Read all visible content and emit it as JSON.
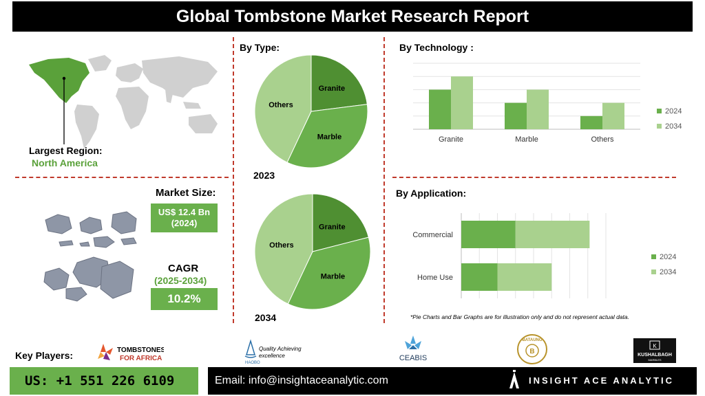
{
  "title": "Global Tombstone Market Research Report",
  "region": {
    "label": "Largest Region:",
    "value": "North America"
  },
  "market_size": {
    "label": "Market Size:",
    "value": "US$ 12.4 Bn",
    "year": "(2024)"
  },
  "cagr": {
    "label": "CAGR",
    "period": "(2025-2034)",
    "value": "10.2%"
  },
  "by_type": {
    "label": "By Type:",
    "year_top": "2023",
    "year_bottom": "2034"
  },
  "by_technology": {
    "label": "By Technology :"
  },
  "by_application": {
    "label": "By Application:"
  },
  "disclaimer": "*Pie Charts and Bar Graphs are for illustration only and do not represent actual data.",
  "key_players": {
    "label": "Key Players:",
    "logos": [
      {
        "name": "tombstones-for-africa-logo",
        "line1": "TOMBSTONES",
        "line2": "FOR AFRICA"
      },
      {
        "name": "haobo-logo",
        "line1": "Quality Achieving",
        "line2": "excellence",
        "brand": "HAOBO"
      },
      {
        "name": "ceabis-logo",
        "line1": "CEABIS"
      },
      {
        "name": "bataung-logo",
        "line1": "BATAUNG"
      },
      {
        "name": "kushalbagh-logo",
        "line1": "KUSHALBAGH",
        "line2": "MARBLES"
      }
    ]
  },
  "footer": {
    "phone": "US: +1 551 226 6109",
    "email": "Email: info@insightaceanalytic.com",
    "brand": "INSIGHT ACE ANALYTIC"
  },
  "colors": {
    "dark_green": "#4f8f32",
    "mid_green": "#6ab04c",
    "light_green": "#a9d18e",
    "accent_red": "#c0392b"
  },
  "chart_data": [
    {
      "type": "pie",
      "title": "2023",
      "labels": [
        "Granite",
        "Marble",
        "Others"
      ],
      "values": [
        23,
        34,
        43
      ],
      "colors": [
        "#4f8f32",
        "#6ab04c",
        "#a9d18e"
      ]
    },
    {
      "type": "pie",
      "title": "2034",
      "labels": [
        "Granite",
        "Marble",
        "Others"
      ],
      "values": [
        21,
        36,
        43
      ],
      "colors": [
        "#4f8f32",
        "#6ab04c",
        "#a9d18e"
      ]
    },
    {
      "type": "bar",
      "title": "By Technology :",
      "categories": [
        "Granite",
        "Marble",
        "Others"
      ],
      "series": [
        {
          "name": "2024",
          "values": [
            60,
            40,
            20
          ],
          "color": "#6ab04c"
        },
        {
          "name": "2034",
          "values": [
            80,
            60,
            40
          ],
          "color": "#a9d18e"
        }
      ],
      "ylim": [
        0,
        100
      ],
      "grid": true,
      "legend": "right"
    },
    {
      "type": "bar",
      "orientation": "horizontal",
      "stacked": true,
      "title": "By Application:",
      "categories": [
        "Commercial",
        "Home Use"
      ],
      "series": [
        {
          "name": "2024",
          "values": [
            30,
            20
          ],
          "color": "#6ab04c"
        },
        {
          "name": "2034",
          "values": [
            41,
            30
          ],
          "color": "#a9d18e"
        }
      ],
      "xlim": [
        0,
        80
      ],
      "grid": true,
      "legend": "right"
    }
  ]
}
